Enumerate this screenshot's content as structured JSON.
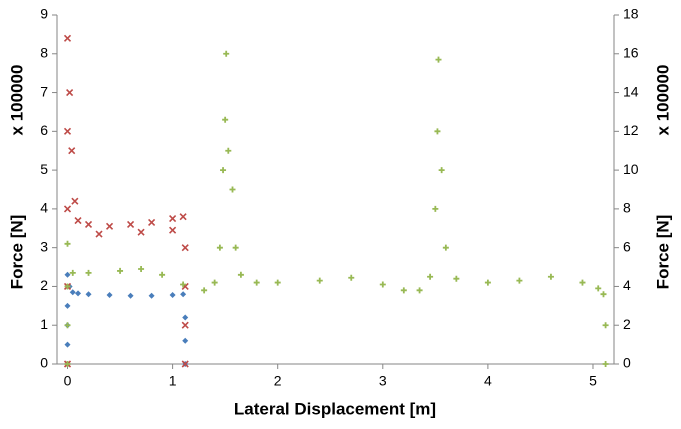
{
  "chart_data": {
    "type": "scatter",
    "xlabel": "Lateral Displacement [m]",
    "ylabel": "Force [N]",
    "yunit": "x 100000",
    "y2label": "Force [N]",
    "y2unit": "x 100000",
    "xlim": [
      -0.1,
      5.2
    ],
    "xticks": [
      0,
      1,
      2,
      3,
      4,
      5
    ],
    "ylim": [
      0,
      9
    ],
    "yticks": [
      0,
      1,
      2,
      3,
      4,
      5,
      6,
      7,
      8,
      9
    ],
    "y2lim": [
      0,
      18
    ],
    "y2ticks": [
      0,
      2,
      4,
      6,
      8,
      10,
      12,
      14,
      16,
      18
    ],
    "series": [
      {
        "color": "#4a7ebb",
        "marker": "diamond",
        "x": [
          0,
          0,
          0,
          0,
          0,
          0.02,
          0.05,
          0.1,
          0.2,
          0.4,
          0.6,
          0.8,
          1.0,
          1.1,
          1.12,
          1.12,
          1.12
        ],
        "values": [
          0,
          0.5,
          1,
          1.5,
          2.3,
          2.0,
          1.85,
          1.82,
          1.8,
          1.78,
          1.76,
          1.76,
          1.78,
          1.8,
          1.2,
          0.6,
          0
        ]
      },
      {
        "color": "#be4b48",
        "marker": "cross",
        "x": [
          0,
          0,
          0,
          0,
          0,
          0.02,
          0.04,
          0.07,
          0.1,
          0.2,
          0.3,
          0.4,
          0.6,
          0.7,
          0.8,
          1.0,
          1.0,
          1.1,
          1.12,
          1.12,
          1.12,
          1.12
        ],
        "values": [
          0,
          2,
          4,
          6,
          8.4,
          7,
          5.5,
          4.2,
          3.7,
          3.6,
          3.35,
          3.55,
          3.6,
          3.4,
          3.65,
          3.75,
          3.45,
          3.8,
          3,
          2,
          1,
          0
        ]
      },
      {
        "color": "#98b954",
        "marker": "plus",
        "axis": "y2",
        "x": [
          0,
          0,
          0,
          0,
          0.05,
          0.2,
          0.5,
          0.7,
          0.9,
          1.1,
          1.3,
          1.4,
          1.45,
          1.48,
          1.5,
          1.51,
          1.53,
          1.57,
          1.6,
          1.65,
          1.8,
          2.0,
          2.4,
          2.7,
          3.0,
          3.2,
          3.35,
          3.45,
          3.5,
          3.52,
          3.53,
          3.56,
          3.6,
          3.7,
          4.0,
          4.3,
          4.6,
          4.9,
          5.05,
          5.1,
          5.12,
          5.12
        ],
        "values": [
          0,
          2,
          4,
          6.2,
          4.7,
          4.7,
          4.8,
          4.9,
          4.6,
          4.1,
          3.8,
          4.2,
          6,
          10,
          12.6,
          16,
          11,
          9,
          6,
          4.6,
          4.2,
          4.2,
          4.3,
          4.45,
          4.1,
          3.8,
          3.8,
          4.5,
          8,
          12,
          15.7,
          10,
          6,
          4.4,
          4.2,
          4.3,
          4.5,
          4.2,
          3.9,
          3.6,
          2,
          0
        ]
      }
    ]
  }
}
